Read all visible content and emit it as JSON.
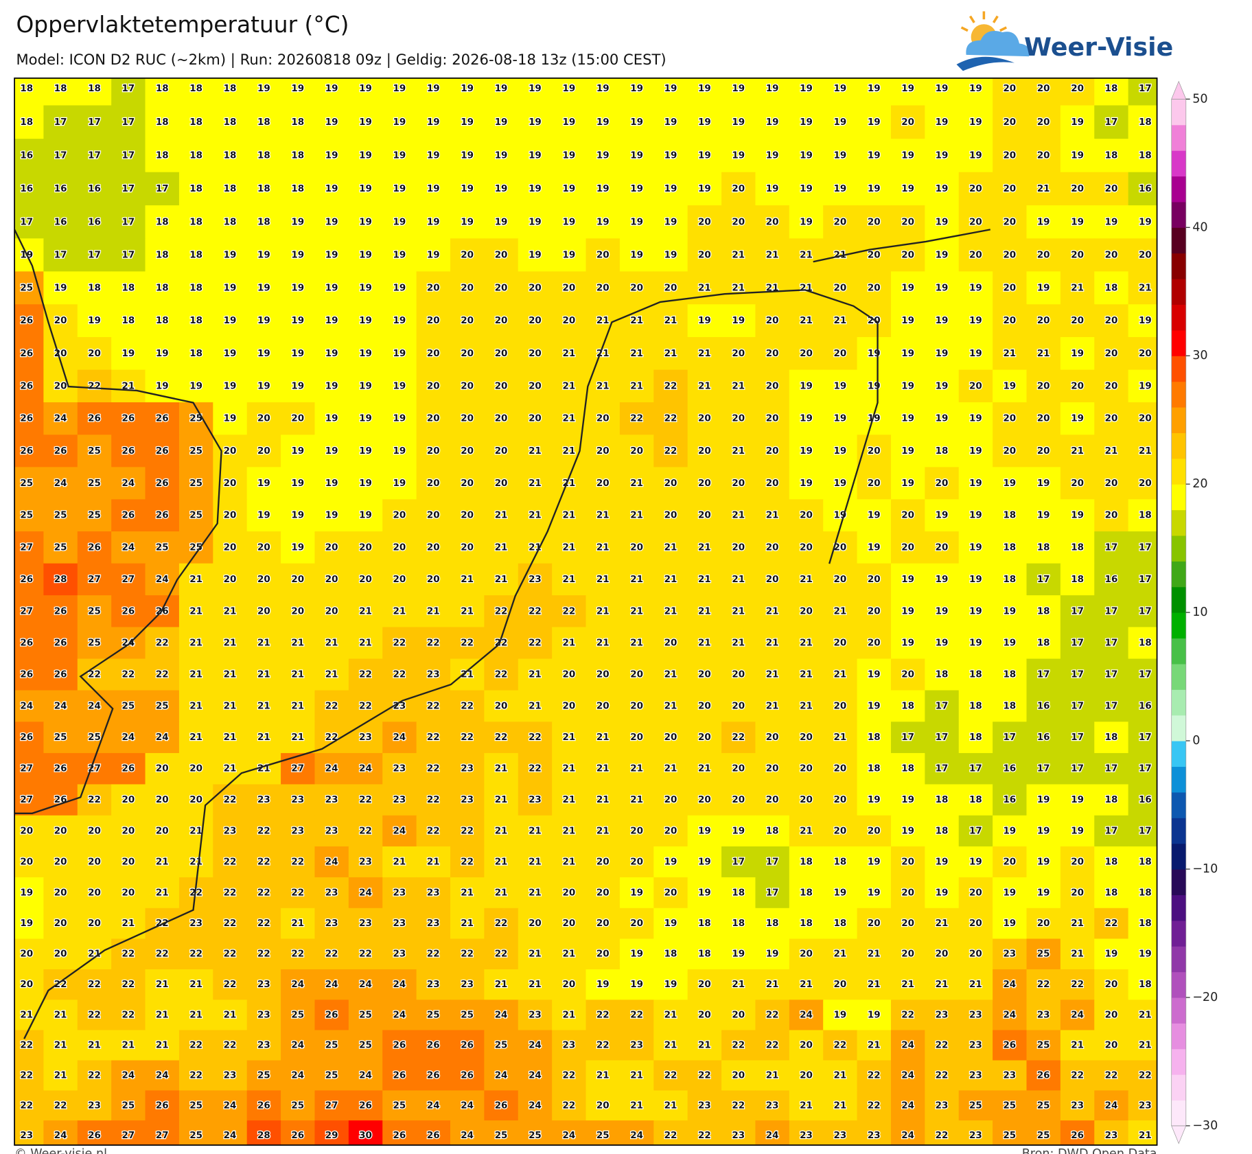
{
  "header": {
    "title": "Oppervlaktetemperatuur (°C)",
    "subtitle": "Model: ICON D2 RUC (~2km)  |  Run: 20260818 09z  |  Geldig: 2026-08-18 13z (15:00 CEST)"
  },
  "logo": {
    "text": "Weer-Visie"
  },
  "map": {
    "rows": [
      [
        18,
        18,
        18,
        17,
        18,
        18,
        18,
        19,
        19,
        19,
        19,
        19,
        19,
        19,
        19,
        19,
        19,
        19,
        19,
        19,
        19,
        19,
        19,
        19,
        19,
        19,
        19,
        19,
        19,
        20,
        20,
        20,
        18,
        17
      ],
      [
        18,
        17,
        17,
        17,
        18,
        18,
        18,
        18,
        18,
        19,
        19,
        19,
        19,
        19,
        19,
        19,
        19,
        19,
        19,
        19,
        19,
        19,
        19,
        19,
        19,
        19,
        20,
        19,
        19,
        20,
        20,
        19,
        17,
        18
      ],
      [
        16,
        17,
        17,
        17,
        18,
        18,
        18,
        18,
        18,
        19,
        19,
        19,
        19,
        19,
        19,
        19,
        19,
        19,
        19,
        19,
        19,
        19,
        19,
        19,
        19,
        19,
        19,
        19,
        19,
        20,
        20,
        19,
        18,
        18
      ],
      [
        16,
        16,
        16,
        17,
        17,
        18,
        18,
        18,
        18,
        19,
        19,
        19,
        19,
        19,
        19,
        19,
        19,
        19,
        19,
        19,
        19,
        20,
        19,
        19,
        19,
        19,
        19,
        19,
        20,
        20,
        21,
        20,
        20,
        16
      ],
      [
        17,
        16,
        16,
        17,
        18,
        18,
        18,
        18,
        19,
        19,
        19,
        19,
        19,
        19,
        19,
        19,
        19,
        19,
        19,
        19,
        20,
        20,
        20,
        19,
        20,
        20,
        20,
        19,
        20,
        20,
        19,
        19,
        19,
        19
      ],
      [
        19,
        17,
        17,
        17,
        18,
        18,
        19,
        19,
        19,
        19,
        19,
        19,
        19,
        20,
        20,
        19,
        19,
        20,
        19,
        19,
        20,
        21,
        21,
        21,
        21,
        20,
        20,
        19,
        20,
        20,
        20,
        20,
        20,
        20
      ],
      [
        25,
        19,
        18,
        18,
        18,
        18,
        19,
        19,
        19,
        19,
        19,
        19,
        20,
        20,
        20,
        20,
        20,
        20,
        20,
        20,
        21,
        21,
        21,
        21,
        20,
        20,
        19,
        19,
        19,
        20,
        19,
        21,
        18,
        21
      ],
      [
        26,
        20,
        19,
        18,
        18,
        18,
        19,
        19,
        19,
        19,
        19,
        19,
        20,
        20,
        20,
        20,
        20,
        21,
        21,
        21,
        19,
        19,
        20,
        21,
        21,
        20,
        19,
        19,
        19,
        20,
        20,
        20,
        20,
        19
      ],
      [
        26,
        20,
        20,
        19,
        19,
        18,
        19,
        19,
        19,
        19,
        19,
        19,
        20,
        20,
        20,
        20,
        21,
        21,
        21,
        21,
        21,
        20,
        20,
        20,
        20,
        19,
        19,
        19,
        19,
        21,
        21,
        19,
        20,
        20
      ],
      [
        26,
        20,
        22,
        21,
        19,
        19,
        19,
        19,
        19,
        19,
        19,
        19,
        20,
        20,
        20,
        20,
        21,
        21,
        21,
        22,
        21,
        21,
        20,
        19,
        19,
        19,
        19,
        19,
        20,
        19,
        20,
        20,
        20,
        19
      ],
      [
        26,
        24,
        26,
        26,
        26,
        25,
        19,
        20,
        20,
        19,
        19,
        19,
        20,
        20,
        20,
        20,
        21,
        20,
        22,
        22,
        20,
        20,
        20,
        19,
        19,
        19,
        19,
        19,
        19,
        20,
        20,
        19,
        20,
        20
      ],
      [
        26,
        26,
        25,
        26,
        26,
        25,
        20,
        20,
        19,
        19,
        19,
        19,
        20,
        20,
        20,
        21,
        21,
        20,
        20,
        22,
        20,
        21,
        20,
        19,
        19,
        20,
        19,
        18,
        19,
        20,
        20,
        21,
        21,
        21
      ],
      [
        25,
        24,
        25,
        24,
        26,
        25,
        20,
        19,
        19,
        19,
        19,
        19,
        20,
        20,
        20,
        21,
        21,
        20,
        21,
        20,
        20,
        20,
        20,
        19,
        19,
        20,
        19,
        20,
        19,
        19,
        19,
        20,
        20,
        20
      ],
      [
        25,
        25,
        25,
        26,
        26,
        25,
        20,
        19,
        19,
        19,
        19,
        20,
        20,
        20,
        21,
        21,
        21,
        21,
        21,
        20,
        20,
        21,
        21,
        20,
        19,
        19,
        20,
        19,
        19,
        18,
        19,
        19,
        20,
        18
      ],
      [
        27,
        25,
        26,
        24,
        25,
        25,
        20,
        20,
        19,
        20,
        20,
        20,
        20,
        20,
        21,
        21,
        21,
        21,
        20,
        21,
        21,
        20,
        20,
        20,
        20,
        19,
        20,
        20,
        19,
        18,
        18,
        18,
        17,
        17
      ],
      [
        26,
        28,
        27,
        27,
        24,
        21,
        20,
        20,
        20,
        20,
        20,
        20,
        20,
        21,
        21,
        23,
        21,
        21,
        21,
        21,
        21,
        21,
        20,
        21,
        20,
        20,
        19,
        19,
        19,
        18,
        17,
        18,
        16,
        17
      ],
      [
        27,
        26,
        25,
        26,
        26,
        21,
        21,
        20,
        20,
        20,
        21,
        21,
        21,
        21,
        22,
        22,
        22,
        21,
        21,
        21,
        21,
        21,
        21,
        20,
        21,
        20,
        19,
        19,
        19,
        19,
        18,
        17,
        17,
        17
      ],
      [
        26,
        26,
        25,
        24,
        22,
        21,
        21,
        21,
        21,
        21,
        21,
        22,
        22,
        22,
        22,
        22,
        21,
        21,
        21,
        20,
        21,
        21,
        21,
        21,
        20,
        20,
        19,
        19,
        19,
        19,
        18,
        17,
        17,
        18
      ],
      [
        26,
        26,
        22,
        22,
        22,
        21,
        21,
        21,
        21,
        21,
        22,
        22,
        23,
        21,
        22,
        21,
        20,
        20,
        20,
        21,
        20,
        20,
        21,
        21,
        21,
        19,
        20,
        18,
        18,
        18,
        17,
        17,
        17,
        17
      ],
      [
        24,
        24,
        24,
        25,
        25,
        21,
        21,
        21,
        21,
        22,
        22,
        23,
        22,
        22,
        20,
        21,
        20,
        20,
        20,
        21,
        20,
        20,
        21,
        21,
        20,
        19,
        18,
        17,
        18,
        18,
        16,
        17,
        17,
        16
      ],
      [
        26,
        25,
        25,
        24,
        24,
        21,
        21,
        21,
        21,
        22,
        23,
        24,
        22,
        22,
        22,
        22,
        21,
        21,
        20,
        20,
        20,
        22,
        20,
        20,
        21,
        18,
        17,
        17,
        18,
        17,
        16,
        17,
        18,
        17
      ],
      [
        27,
        26,
        27,
        26,
        20,
        20,
        21,
        21,
        27,
        24,
        24,
        23,
        22,
        23,
        21,
        22,
        21,
        21,
        21,
        21,
        21,
        20,
        20,
        20,
        20,
        18,
        18,
        17,
        17,
        16,
        17,
        17,
        17,
        17
      ],
      [
        27,
        26,
        22,
        20,
        20,
        20,
        22,
        23,
        23,
        23,
        22,
        23,
        22,
        23,
        21,
        23,
        21,
        21,
        21,
        20,
        20,
        20,
        20,
        20,
        20,
        19,
        19,
        18,
        18,
        16,
        19,
        19,
        18,
        16
      ],
      [
        20,
        20,
        20,
        20,
        20,
        21,
        23,
        22,
        23,
        23,
        22,
        24,
        22,
        22,
        21,
        21,
        21,
        21,
        20,
        20,
        19,
        19,
        18,
        21,
        20,
        20,
        19,
        18,
        17,
        19,
        19,
        19,
        17,
        17
      ],
      [
        20,
        20,
        20,
        20,
        21,
        21,
        22,
        22,
        22,
        24,
        23,
        21,
        21,
        22,
        21,
        21,
        21,
        20,
        20,
        19,
        19,
        17,
        17,
        18,
        18,
        19,
        20,
        19,
        19,
        20,
        19,
        20,
        18,
        18
      ],
      [
        19,
        20,
        20,
        20,
        21,
        22,
        22,
        22,
        22,
        23,
        24,
        23,
        23,
        21,
        21,
        21,
        20,
        20,
        19,
        20,
        19,
        18,
        17,
        18,
        19,
        19,
        20,
        19,
        20,
        19,
        19,
        20,
        18,
        18
      ],
      [
        19,
        20,
        20,
        21,
        22,
        23,
        22,
        22,
        21,
        23,
        23,
        23,
        23,
        21,
        22,
        20,
        20,
        20,
        20,
        19,
        18,
        18,
        18,
        18,
        18,
        20,
        20,
        21,
        20,
        19,
        20,
        21,
        22,
        18
      ],
      [
        20,
        20,
        21,
        22,
        22,
        22,
        22,
        22,
        22,
        22,
        22,
        23,
        22,
        22,
        22,
        21,
        21,
        20,
        19,
        18,
        18,
        19,
        19,
        20,
        21,
        21,
        20,
        20,
        20,
        23,
        25,
        21,
        19,
        19
      ],
      [
        20,
        22,
        22,
        22,
        21,
        21,
        22,
        23,
        24,
        24,
        24,
        24,
        23,
        23,
        21,
        21,
        20,
        19,
        19,
        19,
        20,
        21,
        21,
        21,
        20,
        21,
        21,
        21,
        21,
        24,
        22,
        22,
        20,
        18
      ],
      [
        21,
        21,
        22,
        22,
        21,
        21,
        21,
        23,
        25,
        26,
        25,
        24,
        25,
        25,
        24,
        23,
        21,
        22,
        22,
        21,
        20,
        20,
        22,
        24,
        19,
        19,
        22,
        23,
        23,
        24,
        23,
        24,
        20,
        21
      ],
      [
        22,
        21,
        21,
        21,
        21,
        22,
        22,
        23,
        24,
        25,
        25,
        26,
        26,
        26,
        25,
        24,
        23,
        22,
        23,
        21,
        21,
        22,
        22,
        20,
        22,
        21,
        24,
        22,
        23,
        26,
        25,
        21,
        20,
        21
      ],
      [
        22,
        21,
        22,
        24,
        24,
        22,
        23,
        25,
        24,
        25,
        24,
        26,
        26,
        26,
        24,
        24,
        22,
        21,
        21,
        22,
        22,
        20,
        21,
        20,
        21,
        22,
        24,
        22,
        23,
        23,
        26,
        22,
        22,
        22
      ],
      [
        22,
        22,
        23,
        25,
        26,
        25,
        24,
        26,
        25,
        27,
        26,
        25,
        24,
        24,
        26,
        24,
        22,
        20,
        21,
        21,
        23,
        22,
        23,
        21,
        21,
        22,
        24,
        23,
        25,
        25,
        25,
        23,
        24,
        23
      ],
      [
        23,
        24,
        26,
        27,
        27,
        25,
        24,
        28,
        26,
        29,
        30,
        26,
        26,
        24,
        25,
        25,
        24,
        25,
        24,
        22,
        22,
        23,
        24,
        23,
        23,
        23,
        24,
        22,
        23,
        25,
        25,
        26,
        23,
        21
      ]
    ]
  },
  "colorbar": {
    "lim": [
      -30,
      50
    ],
    "ticks": [
      50,
      40,
      30,
      20,
      10,
      0,
      {
        "value": -10,
        "label": "−10"
      },
      {
        "value": -20,
        "label": "−20"
      },
      {
        "value": -30,
        "label": "−30"
      }
    ],
    "colors": [
      "#fde8fa",
      "#fbd2f4",
      "#f6b2ee",
      "#e68ee0",
      "#cc6cce",
      "#b050bc",
      "#9038a8",
      "#701f95",
      "#4c0f80",
      "#280a58",
      "#081a6e",
      "#0b3490",
      "#0d58b0",
      "#0d90d8",
      "#38c6f4",
      "#d0f8d8",
      "#a8ecb0",
      "#78d878",
      "#48c048",
      "#00b000",
      "#009000",
      "#40a818",
      "#88c400",
      "#c8d800",
      "#ffff00",
      "#ffe000",
      "#ffc400",
      "#ffa000",
      "#ff7a00",
      "#ff5000",
      "#ff0000",
      "#d80000",
      "#b00000",
      "#880000",
      "#580020",
      "#780060",
      "#a80090",
      "#d838c8",
      "#f080d8",
      "#fcc8ec"
    ]
  },
  "footer": {
    "left": "© Weer-visie.nl",
    "right": "Bron: DWD Open Data"
  }
}
